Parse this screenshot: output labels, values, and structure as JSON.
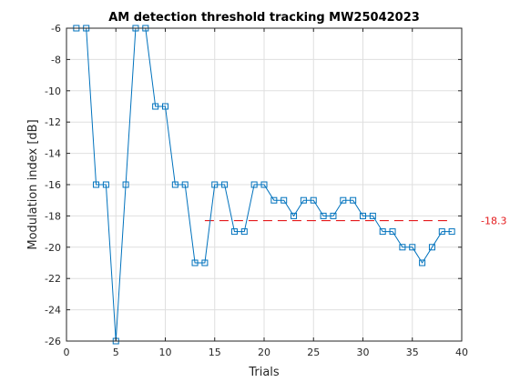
{
  "chart_data": {
    "type": "line",
    "title": "AM detection threshold tracking MW25042023",
    "xlabel": "Trials",
    "ylabel": "Modulation index [dB]",
    "xlim": [
      0,
      40
    ],
    "ylim": [
      -26,
      -6
    ],
    "xticks": [
      0,
      5,
      10,
      15,
      20,
      25,
      30,
      35,
      40
    ],
    "yticks": [
      -26,
      -24,
      -22,
      -20,
      -18,
      -16,
      -14,
      -12,
      -10,
      -8,
      -6
    ],
    "grid": true,
    "series": [
      {
        "color": "#0072BD",
        "marker": "square",
        "x": [
          1,
          2,
          3,
          4,
          5,
          6,
          7,
          8,
          9,
          10,
          11,
          12,
          13,
          14,
          15,
          16,
          17,
          18,
          19,
          20,
          21,
          22,
          23,
          24,
          25,
          26,
          27,
          28,
          29,
          30,
          31,
          32,
          33,
          34,
          35,
          36,
          37,
          38,
          39
        ],
        "y": [
          -6,
          -6,
          -16,
          -16,
          -26,
          -16,
          -6,
          -6,
          -11,
          -11,
          -16,
          -16,
          -21,
          -21,
          -16,
          -16,
          -19,
          -19,
          -16,
          -16,
          -17,
          -17,
          -18,
          -17,
          -17,
          -18,
          -18,
          -17,
          -17,
          -18,
          -18,
          -19,
          -19,
          -20,
          -20,
          -21,
          -20,
          -19,
          -19
        ]
      }
    ],
    "threshold": {
      "value": -18.3,
      "x_start": 14,
      "x_end": 39,
      "color": "#E41A1C",
      "style": "dashed",
      "label": "-18.3"
    }
  }
}
